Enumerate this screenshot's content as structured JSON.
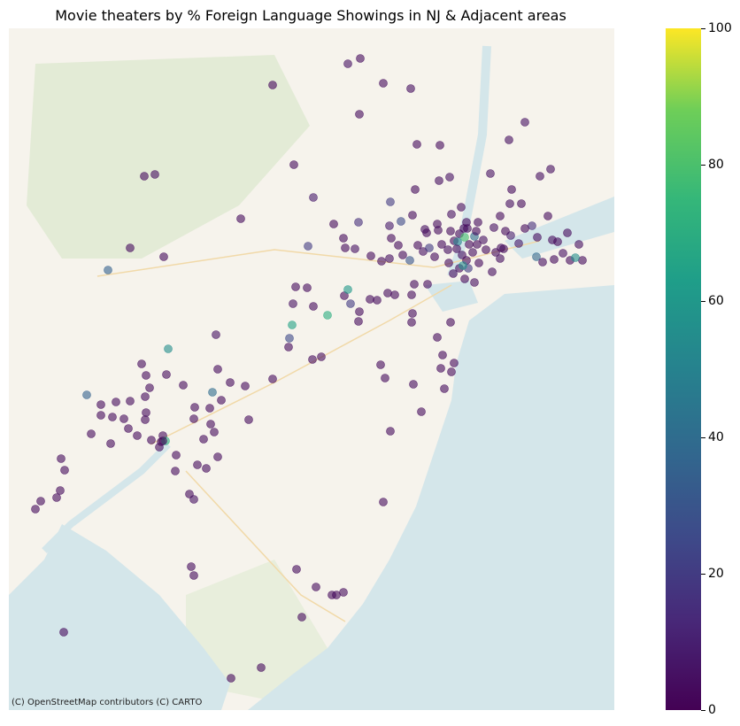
{
  "title": "Movie theaters by % Foreign Language Showings in NJ & Adjacent areas",
  "attribution": "(C) OpenStreetMap contributors (C) CARTO",
  "colorbar": {
    "colormap": "viridis",
    "min": 0,
    "max": 100,
    "ticks": [
      {
        "value": 0,
        "label": "0"
      },
      {
        "value": 20,
        "label": "20"
      },
      {
        "value": 40,
        "label": "40"
      },
      {
        "value": 60,
        "label": "60"
      },
      {
        "value": 80,
        "label": "80"
      },
      {
        "value": 100,
        "label": "100"
      }
    ]
  },
  "basemap": {
    "land_color": "#f6f3ec",
    "water_color": "#d4e6ea",
    "park_color": "#e4ecd7"
  }
}
